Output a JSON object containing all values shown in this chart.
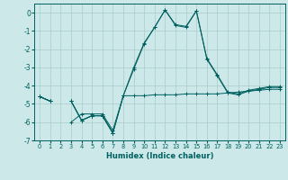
{
  "x": [
    0,
    1,
    2,
    3,
    4,
    5,
    6,
    7,
    8,
    9,
    10,
    11,
    12,
    13,
    14,
    15,
    16,
    17,
    18,
    19,
    20,
    21,
    22,
    23
  ],
  "line1": [
    -4.6,
    -4.85,
    null,
    -4.85,
    -5.9,
    -5.65,
    -5.65,
    -6.6,
    null,
    null,
    null,
    null,
    null,
    null,
    null,
    null,
    null,
    null,
    null,
    null,
    null,
    null,
    null,
    null
  ],
  "line2": [
    -4.6,
    -4.85,
    null,
    -4.85,
    -5.9,
    -5.65,
    -5.65,
    -6.6,
    -4.55,
    -4.55,
    -4.55,
    -4.5,
    -4.5,
    -4.5,
    -4.45,
    -4.45,
    -4.45,
    -4.45,
    -4.4,
    -4.35,
    -4.3,
    -4.25,
    -4.2,
    -4.2
  ],
  "line3": [
    -4.6,
    -4.85,
    null,
    -4.85,
    -5.9,
    -5.65,
    -5.65,
    -6.6,
    -4.55,
    -3.1,
    -1.7,
    -0.8,
    0.15,
    -0.7,
    -0.8,
    0.1,
    -2.55,
    -3.45,
    -4.4,
    -4.5,
    -4.3,
    -4.2,
    -4.1,
    -4.1
  ],
  "line4": [
    -4.6,
    -4.85,
    null,
    -6.0,
    -5.55,
    -5.55,
    -5.55,
    -6.45,
    -4.55,
    -3.0,
    -1.65,
    -0.8,
    0.15,
    -0.65,
    -0.75,
    0.1,
    -2.5,
    -3.4,
    -4.35,
    -4.45,
    -4.25,
    -4.15,
    -4.05,
    -4.05
  ],
  "bg_color": "#cce8e8",
  "grid_color": "#aacccc",
  "line_color": "#006060",
  "xlabel": "Humidex (Indice chaleur)",
  "xlim": [
    -0.5,
    23.5
  ],
  "ylim": [
    -7.0,
    0.5
  ],
  "yticks": [
    0,
    -1,
    -2,
    -3,
    -4,
    -5,
    -6,
    -7
  ],
  "xticks": [
    0,
    1,
    2,
    3,
    4,
    5,
    6,
    7,
    8,
    9,
    10,
    11,
    12,
    13,
    14,
    15,
    16,
    17,
    18,
    19,
    20,
    21,
    22,
    23
  ]
}
